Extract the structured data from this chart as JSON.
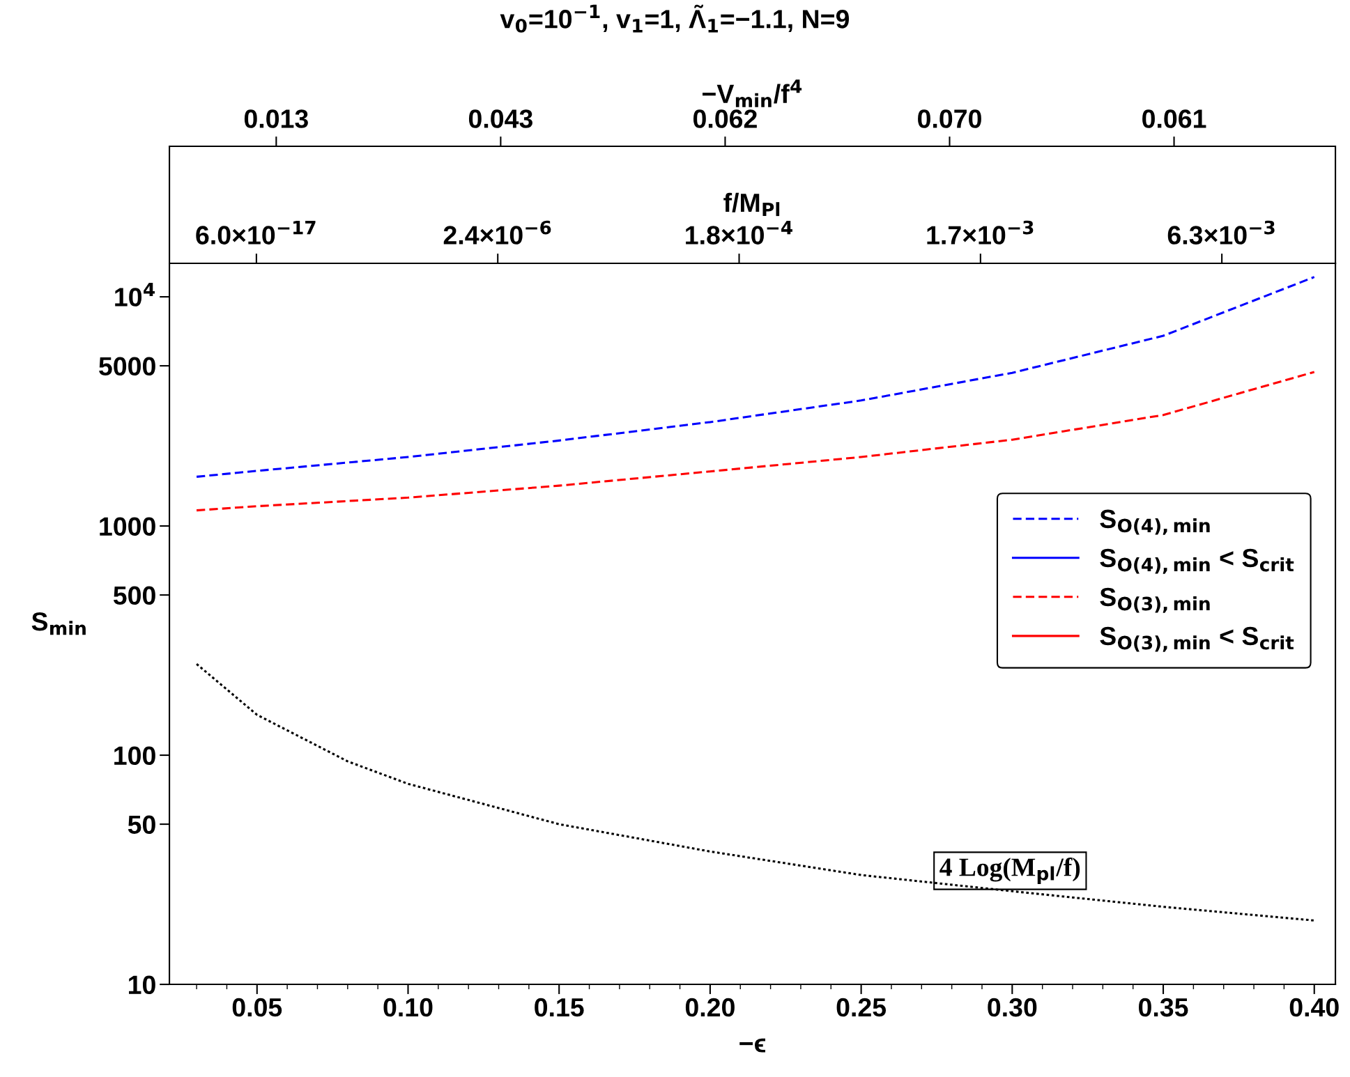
{
  "chart_data": {
    "type": "line",
    "title": "v$_{0}$=10$^{−1}$, v$_{1}$=1, Λ̃$_{1}$=−1.1, N=9",
    "xlabel": "−ϵ",
    "ylabel": "S$_{min}$",
    "x2label": "f/M$_{Pl}$",
    "x": [
      0.03,
      0.05,
      0.1,
      0.15,
      0.2,
      0.25,
      0.3,
      0.35,
      0.4
    ],
    "series": [
      {
        "name": "S$_{O(4),min}$",
        "color": "#0000ff",
        "line_style": "dashed",
        "values": [
          1640,
          1740,
          2000,
          2360,
          2840,
          3530,
          4660,
          6760,
          12200
        ]
      },
      {
        "name": "S$_{O(4),min}$ < S$_{crit}$",
        "color": "#0000ff",
        "line_style": "solid",
        "values": [
          null,
          null,
          null,
          null,
          null,
          null,
          null,
          null,
          null
        ]
      },
      {
        "name": "S$_{O(3),min}$",
        "color": "#ff0000",
        "line_style": "dashed",
        "values": [
          1170,
          1220,
          1330,
          1500,
          1730,
          2000,
          2380,
          3050,
          4700
        ]
      },
      {
        "name": "S$_{O(3),min}$ < S$_{crit}$",
        "color": "#ff0000",
        "line_style": "solid",
        "values": [
          null,
          null,
          null,
          null,
          null,
          null,
          null,
          null,
          null
        ]
      },
      {
        "color": "#000000",
        "line_style": "dotted",
        "x": [
          0.03,
          0.05,
          0.08,
          0.1,
          0.15,
          0.2,
          0.25,
          0.3,
          0.35,
          0.4
        ],
        "values": [
          250,
          150,
          94,
          75,
          50,
          38,
          30,
          25.5,
          21.8,
          19
        ]
      }
    ],
    "annotations": [
      "4 Log(M$_{pl}$/f)",
      "−V$_{min}$/f$^{4}$",
      "0.013",
      "0.043",
      "0.062",
      "0.070",
      "0.061",
      "6.0×10$^{−17}$",
      "2.4×10$^{−6}$",
      "1.8×10$^{−4}$",
      "1.7×10$^{−3}$",
      "6.3×10$^{−3}$"
    ],
    "log": "y",
    "grid": false,
    "legend": "right",
    "xlim": [
      0.021,
      0.407
    ],
    "xticks": [
      {
        "value": 0.05,
        "label": "0.05"
      },
      {
        "value": 0.1,
        "label": "0.10"
      },
      {
        "value": 0.15,
        "label": "0.15"
      },
      {
        "value": 0.2,
        "label": "0.20"
      },
      {
        "value": 0.25,
        "label": "0.25"
      },
      {
        "value": 0.3,
        "label": "0.30"
      },
      {
        "value": 0.35,
        "label": "0.35"
      },
      {
        "value": 0.4,
        "label": "0.40"
      }
    ],
    "ylim": [
      10,
      14000
    ],
    "yticks": [
      10,
      50,
      100,
      500,
      1000,
      5000,
      {
        "value": 10000,
        "label": "10$^{4}$"
      }
    ]
  }
}
